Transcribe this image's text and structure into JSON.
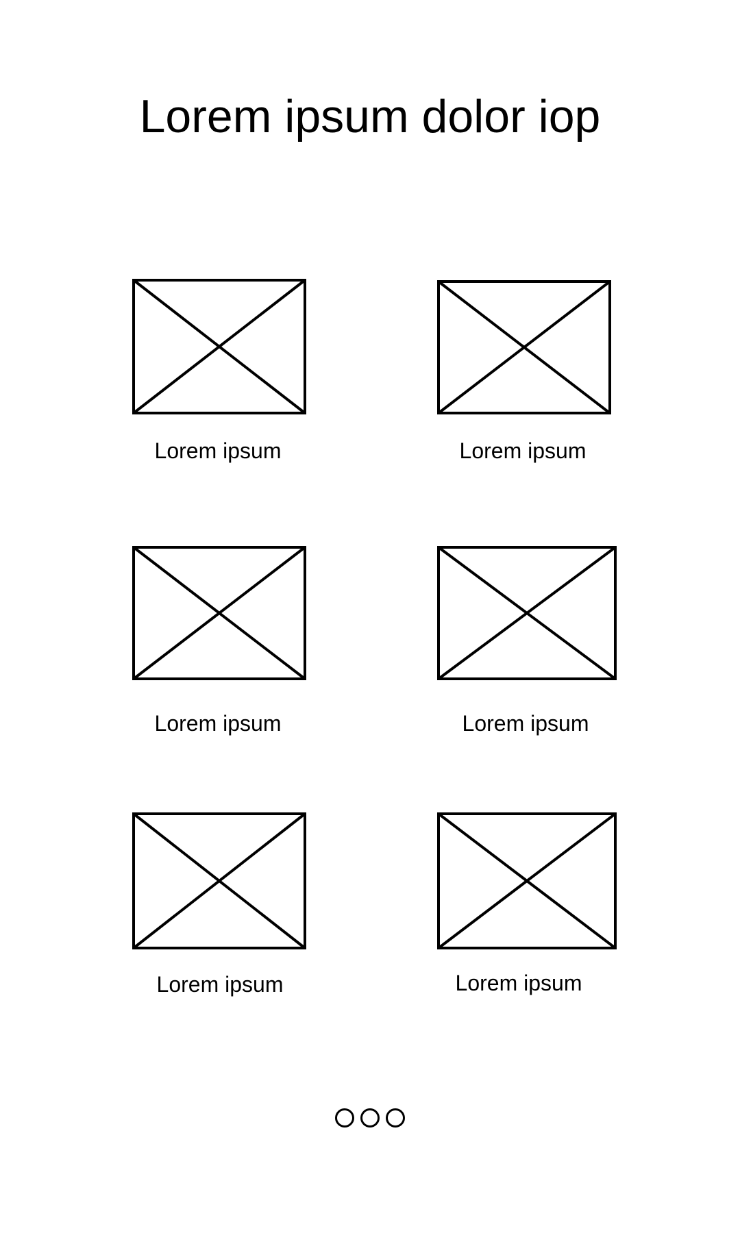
{
  "header": {
    "title": "Lorem ipsum dolor iop"
  },
  "grid": {
    "items": [
      {
        "label": "Lorem ipsum",
        "icon": "image-placeholder-icon"
      },
      {
        "label": "Lorem ipsum",
        "icon": "image-placeholder-icon"
      },
      {
        "label": "Lorem ipsum",
        "icon": "image-placeholder-icon"
      },
      {
        "label": "Lorem ipsum",
        "icon": "image-placeholder-icon"
      },
      {
        "label": "Lorem ipsum",
        "icon": "image-placeholder-icon"
      },
      {
        "label": "Lorem ipsum",
        "icon": "image-placeholder-icon"
      }
    ]
  },
  "pager": {
    "count": 3
  },
  "colors": {
    "stroke": "#000000",
    "background": "#ffffff"
  }
}
